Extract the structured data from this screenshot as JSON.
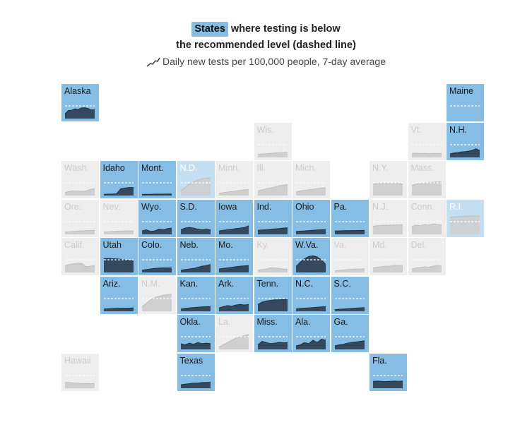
{
  "header": {
    "title_chip": "States",
    "title_rest": " where testing is below",
    "title_line2": "the recommended level (dashed line)",
    "legend_text": "Daily new tests per 100,000 people, 7-day average"
  },
  "colors": {
    "below": "#86bde4",
    "ok": "#eeeeee",
    "area_below": "#34495e",
    "area_ok": "#cfcfcf",
    "dashed_line": "#ffffff"
  },
  "chart_data": {
    "type": "area",
    "title": "States where testing is below the recommended level (dashed line)",
    "subtitle": "Daily new tests per 100,000 people, 7-day average",
    "layout": "tile grid map",
    "states": [
      {
        "name": "Alaska",
        "row": 0,
        "col": 0,
        "below": true,
        "values": [
          0.4,
          0.7,
          0.72,
          0.85,
          0.8,
          0.92,
          0.95,
          0.88,
          0.75,
          0.78
        ]
      },
      {
        "name": "Maine",
        "row": 0,
        "col": 10,
        "below": true,
        "values": []
      },
      {
        "name": "Wis.",
        "row": 1,
        "col": 5,
        "below": false,
        "values": [
          0.25,
          0.3,
          0.32,
          0.35,
          0.38,
          0.4,
          0.42,
          0.45
        ]
      },
      {
        "name": "Vt.",
        "row": 1,
        "col": 9,
        "below": false,
        "values": [
          0.35,
          0.36,
          0.34,
          0.35,
          0.33,
          0.35,
          0.34,
          0.36
        ]
      },
      {
        "name": "N.H.",
        "row": 1,
        "col": 10,
        "below": true,
        "values": [
          0.3,
          0.38,
          0.42,
          0.48,
          0.5,
          0.55,
          0.62,
          0.75,
          0.6
        ]
      },
      {
        "name": "Wash.",
        "row": 2,
        "col": 0,
        "below": false,
        "values": [
          0.25,
          0.35,
          0.4,
          0.38,
          0.35,
          0.4,
          0.55,
          0.6
        ]
      },
      {
        "name": "Idaho",
        "row": 2,
        "col": 1,
        "below": true,
        "values": [
          0.1,
          0.12,
          0.13,
          0.15,
          0.6,
          0.65,
          0.7,
          0.7
        ]
      },
      {
        "name": "Mont.",
        "row": 2,
        "col": 2,
        "below": true,
        "values": [
          0.1,
          0.11,
          0.11,
          0.12,
          0.12,
          0.12,
          0.13,
          0.13
        ]
      },
      {
        "name": "N.D.",
        "row": 2,
        "col": 3,
        "below": false,
        "faded": true,
        "values": [
          0.4,
          0.7,
          1.0,
          1.2,
          1.35,
          1.45,
          1.5,
          1.55
        ]
      },
      {
        "name": "Minn.",
        "row": 2,
        "col": 4,
        "below": false,
        "values": [
          0.2,
          0.25,
          0.3,
          0.35,
          0.4,
          0.45,
          0.5,
          0.52
        ]
      },
      {
        "name": "Ill.",
        "row": 2,
        "col": 5,
        "below": false,
        "values": [
          0.4,
          0.5,
          0.6,
          0.65,
          0.75,
          0.85,
          0.9,
          0.95
        ]
      },
      {
        "name": "Mich.",
        "row": 2,
        "col": 6,
        "below": false,
        "values": [
          0.3,
          0.4,
          0.45,
          0.5,
          0.55,
          0.6,
          0.65,
          0.68
        ]
      },
      {
        "name": "N.Y.",
        "row": 2,
        "col": 8,
        "below": false,
        "values": [
          1.0,
          1.05,
          1.1,
          1.08,
          1.05,
          1.1,
          1.08,
          1.0
        ]
      },
      {
        "name": "Mass.",
        "row": 2,
        "col": 9,
        "below": false,
        "values": [
          0.9,
          1.0,
          1.05,
          1.1,
          1.12,
          1.15,
          1.18,
          1.2
        ]
      },
      {
        "name": "Ore.",
        "row": 3,
        "col": 0,
        "below": false,
        "values": [
          0.2,
          0.22,
          0.25,
          0.28,
          0.3,
          0.32,
          0.34,
          0.35
        ]
      },
      {
        "name": "Nev.",
        "row": 3,
        "col": 1,
        "below": false,
        "values": [
          0.2,
          0.22,
          0.25,
          0.28,
          0.28,
          0.3,
          0.3,
          0.3
        ]
      },
      {
        "name": "Wyo.",
        "row": 3,
        "col": 2,
        "below": true,
        "values": [
          0.3,
          0.4,
          0.25,
          0.3,
          0.45,
          0.4,
          0.5,
          0.55
        ]
      },
      {
        "name": "S.D.",
        "row": 3,
        "col": 3,
        "below": true,
        "values": [
          0.4,
          0.55,
          0.6,
          0.55,
          0.45,
          0.4,
          0.45,
          0.4
        ]
      },
      {
        "name": "Iowa",
        "row": 3,
        "col": 4,
        "below": true,
        "values": [
          0.3,
          0.35,
          0.4,
          0.45,
          0.5,
          0.55,
          0.6,
          0.75
        ]
      },
      {
        "name": "Ind.",
        "row": 3,
        "col": 5,
        "below": true,
        "values": [
          0.35,
          0.38,
          0.4,
          0.45,
          0.48,
          0.5,
          0.55,
          0.58
        ]
      },
      {
        "name": "Ohio",
        "row": 3,
        "col": 6,
        "below": true,
        "values": [
          0.25,
          0.28,
          0.3,
          0.32,
          0.35,
          0.38,
          0.4,
          0.42
        ]
      },
      {
        "name": "Pa.",
        "row": 3,
        "col": 7,
        "below": true,
        "values": [
          0.3,
          0.3,
          0.32,
          0.32,
          0.33,
          0.33,
          0.34,
          0.35
        ]
      },
      {
        "name": "N.J.",
        "row": 3,
        "col": 8,
        "below": false,
        "values": [
          0.7,
          0.75,
          0.78,
          0.8,
          0.8,
          0.82,
          0.82,
          0.85
        ]
      },
      {
        "name": "Conn.",
        "row": 3,
        "col": 9,
        "below": false,
        "values": [
          0.7,
          0.8,
          0.75,
          0.85,
          0.8,
          0.9,
          0.85,
          0.8
        ]
      },
      {
        "name": "R.I.",
        "row": 3,
        "col": 10,
        "below": false,
        "faded": true,
        "values": [
          1.5,
          1.52,
          1.55,
          1.55,
          1.58,
          1.6,
          1.6,
          1.6
        ]
      },
      {
        "name": "Calif.",
        "row": 4,
        "col": 0,
        "below": false,
        "values": [
          0.6,
          0.7,
          0.75,
          0.8,
          0.78,
          0.5,
          0.55,
          0.6
        ]
      },
      {
        "name": "Utah",
        "row": 4,
        "col": 1,
        "below": true,
        "values": [
          1.2,
          1.22,
          1.2,
          1.18,
          1.15,
          1.1,
          1.05,
          1.0
        ]
      },
      {
        "name": "Colo.",
        "row": 4,
        "col": 2,
        "below": true,
        "values": [
          0.2,
          0.25,
          0.3,
          0.35,
          0.38,
          0.4,
          0.4,
          0.4
        ]
      },
      {
        "name": "Neb.",
        "row": 4,
        "col": 3,
        "below": true,
        "values": [
          0.2,
          0.25,
          0.3,
          0.35,
          0.45,
          0.55,
          0.6,
          0.7
        ]
      },
      {
        "name": "Mo.",
        "row": 4,
        "col": 4,
        "below": true,
        "values": [
          0.3,
          0.35,
          0.4,
          0.45,
          0.5,
          0.55,
          0.58,
          0.6
        ]
      },
      {
        "name": "Ky.",
        "row": 4,
        "col": 5,
        "below": false,
        "values": [
          0.2,
          0.25,
          0.3,
          0.4,
          0.38,
          0.35,
          0.3,
          0.28
        ]
      },
      {
        "name": "W.Va.",
        "row": 4,
        "col": 6,
        "below": true,
        "values": [
          0.5,
          0.9,
          1.2,
          1.4,
          1.45,
          1.35,
          1.1,
          0.7
        ]
      },
      {
        "name": "Va.",
        "row": 4,
        "col": 7,
        "below": false,
        "values": [
          0.15,
          0.18,
          0.2,
          0.25,
          0.28,
          0.3,
          0.3,
          0.32
        ]
      },
      {
        "name": "Md.",
        "row": 4,
        "col": 8,
        "below": false,
        "values": [
          0.4,
          0.45,
          0.5,
          0.55,
          0.55,
          0.6,
          0.6,
          0.6
        ]
      },
      {
        "name": "Del.",
        "row": 4,
        "col": 9,
        "below": false,
        "values": [
          0.3,
          0.4,
          0.45,
          0.5,
          0.45,
          0.55,
          0.6,
          0.55
        ]
      },
      {
        "name": "Ariz.",
        "row": 5,
        "col": 1,
        "below": true,
        "values": [
          0.2,
          0.22,
          0.24,
          0.25,
          0.26,
          0.27,
          0.28,
          0.3
        ]
      },
      {
        "name": "N.M.",
        "row": 5,
        "col": 2,
        "below": false,
        "values": [
          0.4,
          0.7,
          1.0,
          1.2,
          1.3,
          1.4,
          1.45,
          1.5
        ]
      },
      {
        "name": "Kan.",
        "row": 5,
        "col": 3,
        "below": true,
        "values": [
          0.2,
          0.25,
          0.3,
          0.32,
          0.35,
          0.38,
          0.4,
          0.42
        ]
      },
      {
        "name": "Ark.",
        "row": 5,
        "col": 4,
        "below": true,
        "values": [
          0.3,
          0.4,
          0.5,
          0.45,
          0.55,
          0.6,
          0.55,
          0.6
        ]
      },
      {
        "name": "Tenn.",
        "row": 5,
        "col": 5,
        "below": true,
        "values": [
          0.6,
          0.8,
          0.9,
          0.95,
          1.0,
          1.0,
          1.02,
          1.05
        ]
      },
      {
        "name": "N.C.",
        "row": 5,
        "col": 6,
        "below": true,
        "values": [
          0.2,
          0.25,
          0.28,
          0.3,
          0.32,
          0.35,
          0.38,
          0.4
        ]
      },
      {
        "name": "S.C.",
        "row": 5,
        "col": 7,
        "below": true,
        "values": [
          0.15,
          0.18,
          0.2,
          0.22,
          0.25,
          0.28,
          0.3,
          0.32
        ]
      },
      {
        "name": "Okla.",
        "row": 6,
        "col": 3,
        "below": true,
        "values": [
          0.5,
          0.4,
          0.55,
          0.45,
          0.6,
          0.5,
          0.55,
          0.5
        ]
      },
      {
        "name": "La.",
        "row": 6,
        "col": 4,
        "below": false,
        "values": [
          0.2,
          0.4,
          0.6,
          0.8,
          1.0,
          1.1,
          1.2,
          1.3
        ]
      },
      {
        "name": "Miss.",
        "row": 6,
        "col": 5,
        "below": true,
        "values": [
          0.4,
          0.7,
          0.6,
          0.5,
          0.55,
          0.6,
          0.58,
          0.6
        ]
      },
      {
        "name": "Ala.",
        "row": 6,
        "col": 6,
        "below": true,
        "values": [
          0.3,
          0.4,
          0.6,
          0.5,
          0.8,
          0.6,
          0.9,
          0.8
        ]
      },
      {
        "name": "Ga.",
        "row": 6,
        "col": 7,
        "below": true,
        "values": [
          0.3,
          0.4,
          0.45,
          0.55,
          0.6,
          0.65,
          0.7,
          0.75
        ]
      },
      {
        "name": "Hawaii",
        "row": 7,
        "col": 0,
        "below": false,
        "values": [
          0.5,
          0.5,
          0.45,
          0.45,
          0.4,
          0.4,
          0.4,
          0.42
        ]
      },
      {
        "name": "Texas",
        "row": 7,
        "col": 3,
        "below": true,
        "values": [
          0.3,
          0.35,
          0.4,
          0.45,
          0.45,
          0.5,
          0.5,
          0.52
        ]
      },
      {
        "name": "Fla.",
        "row": 7,
        "col": 8,
        "below": true,
        "values": [
          0.6,
          0.62,
          0.6,
          0.58,
          0.6,
          0.62,
          0.6,
          0.62
        ]
      }
    ]
  }
}
